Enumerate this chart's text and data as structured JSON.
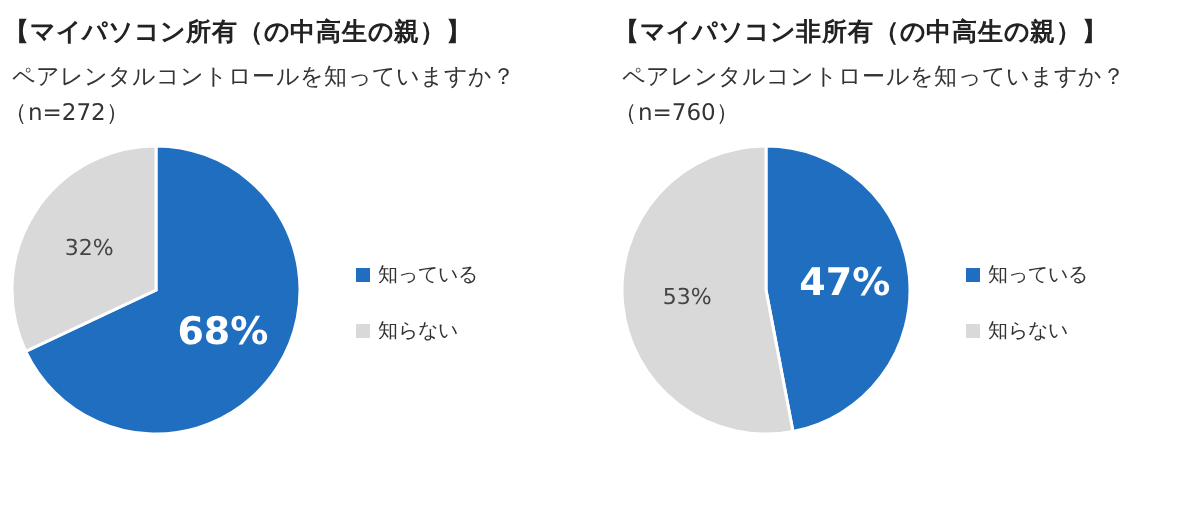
{
  "chart_data": [
    {
      "type": "pie",
      "title": "【マイパソコン所有（の中高生の親）】",
      "subtitle": "ペアレンタルコントロールを知っていますか？",
      "annotations": [
        "（n=272）"
      ],
      "categories": [
        "知っている",
        "知らない"
      ],
      "values": [
        68,
        32
      ],
      "value_labels": [
        "68%",
        "32%"
      ],
      "colors": [
        "#1f6ebf",
        "#d9d9d9"
      ],
      "legend": "right"
    },
    {
      "type": "pie",
      "title": "【マイパソコン非所有（の中高生の親）】",
      "subtitle": "ペアレンタルコントロールを知っていますか？",
      "annotations": [
        "（n=760）"
      ],
      "categories": [
        "知っている",
        "知らない"
      ],
      "values": [
        47,
        53
      ],
      "value_labels": [
        "47%",
        "53%"
      ],
      "colors": [
        "#1f6ebf",
        "#d9d9d9"
      ],
      "legend": "right"
    }
  ]
}
